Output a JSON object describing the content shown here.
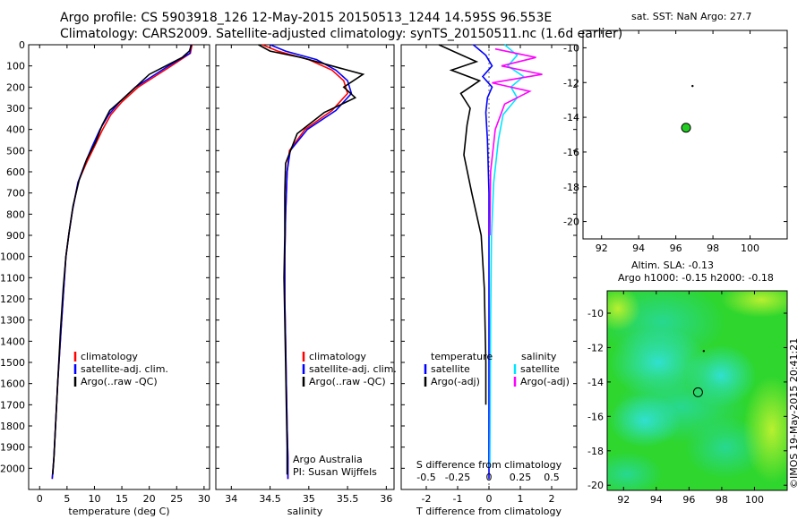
{
  "header": {
    "line1": "Argo profile: CS 5903918_126 12-May-2015 20150513_1244 14.595S 96.553E",
    "line2": "Climatology: CARS2009. Satellite-adjusted climatology: synTS_20150511.nc (1.6d earlier)"
  },
  "colors": {
    "climatology": "#ff0000",
    "satellite": "#0000ff",
    "argo": "#000000",
    "sat_salinity": "#00e5ff",
    "argo_salinity": "#ff00ff",
    "marker": "#22cc22"
  },
  "chart_data": [
    {
      "type": "line",
      "id": "temperature",
      "xlabel": "temperature (deg C)",
      "ylabel": "",
      "xlim": [
        -2,
        31
      ],
      "ylim": [
        2100,
        0
      ],
      "xticks": [
        "0",
        "5",
        "10",
        "15",
        "20",
        "25",
        "30"
      ],
      "xtick_values": [
        0,
        5,
        10,
        15,
        20,
        25,
        30
      ],
      "yticks": [
        "0",
        "100",
        "200",
        "300",
        "400",
        "500",
        "600",
        "700",
        "800",
        "900",
        "1000",
        "1100",
        "1200",
        "1300",
        "1400",
        "1500",
        "1600",
        "1700",
        "1800",
        "1900",
        "2000"
      ],
      "ytick_values": [
        0,
        100,
        200,
        300,
        400,
        500,
        600,
        700,
        800,
        900,
        1000,
        1100,
        1200,
        1300,
        1400,
        1500,
        1600,
        1700,
        1800,
        1900,
        2000
      ],
      "legend": [
        "climatology",
        "satellite-adj. clim.",
        "Argo(..raw -QC)"
      ],
      "series": [
        {
          "name": "climatology",
          "color": "#ff0000",
          "x": [
            27.8,
            27.5,
            24,
            21,
            18,
            15,
            13,
            11.5,
            10,
            8.5,
            7,
            6,
            5.3,
            4.8,
            4.4,
            3.9,
            3.3,
            2.9,
            2.6,
            2.3
          ],
          "y": [
            0,
            40,
            100,
            150,
            200,
            270,
            330,
            400,
            480,
            560,
            650,
            780,
            900,
            1000,
            1150,
            1350,
            1600,
            1800,
            1950,
            2050
          ]
        },
        {
          "name": "satellite-adj. clim.",
          "color": "#0000ff",
          "x": [
            27.6,
            27.4,
            23.5,
            20.5,
            17.5,
            14.6,
            12.6,
            11,
            9.6,
            8.3,
            7,
            6,
            5.3,
            4.8,
            4.4,
            3.9,
            3.3,
            2.9,
            2.6,
            2.3
          ],
          "y": [
            0,
            40,
            100,
            150,
            200,
            270,
            330,
            400,
            480,
            560,
            650,
            780,
            900,
            1000,
            1150,
            1350,
            1600,
            1800,
            1950,
            2050
          ]
        },
        {
          "name": "Argo(..raw -QC)",
          "color": "#000000",
          "x": [
            27.7,
            27.3,
            26,
            23,
            20,
            17.5,
            15,
            12.8,
            11.4,
            10.2,
            8.6,
            7.2,
            6.1,
            5.4,
            4.8,
            4.3,
            3.8,
            3.3,
            2.9,
            2.6,
            2.4
          ],
          "y": [
            0,
            30,
            60,
            100,
            140,
            200,
            260,
            310,
            380,
            460,
            540,
            640,
            760,
            880,
            1000,
            1150,
            1350,
            1600,
            1800,
            1950,
            2030
          ]
        }
      ]
    },
    {
      "type": "line",
      "id": "salinity",
      "xlabel": "salinity",
      "ylabel": "",
      "xlim": [
        33.8,
        36.1
      ],
      "ylim": [
        2100,
        0
      ],
      "xticks": [
        "34",
        "34.5",
        "35",
        "35.5",
        "36"
      ],
      "xtick_values": [
        34,
        34.5,
        35,
        35.5,
        36
      ],
      "legend": [
        "climatology",
        "satellite-adj. clim.",
        "Argo(..raw -QC)"
      ],
      "annotations": [
        "Argo Australia",
        "PI: Susan Wijffels"
      ],
      "series": [
        {
          "name": "climatology",
          "color": "#ff0000",
          "x": [
            34.4,
            34.6,
            35.0,
            35.3,
            35.45,
            35.5,
            35.3,
            34.95,
            34.75,
            34.72,
            34.7,
            34.69,
            34.69,
            34.7,
            34.71,
            34.72,
            34.73,
            34.73
          ],
          "y": [
            0,
            30,
            70,
            120,
            170,
            230,
            310,
            400,
            500,
            600,
            800,
            1000,
            1200,
            1400,
            1600,
            1800,
            1950,
            2050
          ]
        },
        {
          "name": "satellite-adj. clim.",
          "color": "#0000ff",
          "x": [
            34.5,
            34.7,
            35.1,
            35.35,
            35.5,
            35.55,
            35.35,
            34.98,
            34.76,
            34.72,
            34.7,
            34.69,
            34.69,
            34.7,
            34.71,
            34.72,
            34.73,
            34.73
          ],
          "y": [
            0,
            30,
            70,
            120,
            170,
            230,
            310,
            400,
            500,
            600,
            800,
            1000,
            1200,
            1400,
            1600,
            1800,
            1950,
            2050
          ]
        },
        {
          "name": "Argo(..raw -QC)",
          "color": "#000000",
          "x": [
            34.35,
            34.5,
            34.9,
            35.3,
            35.7,
            35.45,
            35.6,
            35.2,
            34.85,
            34.7,
            34.69,
            34.69,
            34.68,
            34.69,
            34.7,
            34.71,
            34.72,
            34.72
          ],
          "y": [
            0,
            30,
            60,
            100,
            140,
            200,
            250,
            320,
            420,
            560,
            700,
            900,
            1100,
            1300,
            1500,
            1700,
            1900,
            2030
          ]
        }
      ]
    },
    {
      "type": "line",
      "id": "difference",
      "xlabel": "T difference from climatology",
      "xlabel_top": "S difference from climatology",
      "xlim": [
        -2.8,
        2.8
      ],
      "ylim": [
        2100,
        0
      ],
      "xticks": [
        "-2",
        "-1",
        "0",
        "1",
        "2"
      ],
      "xtick_values": [
        -2,
        -1,
        0,
        1,
        2
      ],
      "xticks_top": [
        "-0.5",
        "-0.25",
        "0",
        "0.25",
        "0.5"
      ],
      "legend_left_title": "temperature",
      "legend_right_title": "salinity",
      "legend": [
        "satellite",
        "Argo(-adj)",
        "satellite",
        "Argo(-adj)"
      ],
      "series": [
        {
          "name": "temperature satellite",
          "color": "#0000ff",
          "x": [
            -0.5,
            -0.1,
            0.1,
            -0.2,
            0.1,
            -0.05,
            -0.1,
            -0.05,
            0,
            0,
            0,
            0
          ],
          "y": [
            0,
            50,
            100,
            150,
            200,
            250,
            320,
            450,
            700,
            1100,
            1600,
            2050
          ]
        },
        {
          "name": "temperature Argo(-adj)",
          "color": "#000000",
          "x": [
            -1.6,
            -1.0,
            -0.4,
            -1.2,
            -0.3,
            -0.9,
            -0.6,
            -0.7,
            -0.8,
            -0.55,
            -0.25,
            -0.15,
            -0.1,
            -0.1
          ],
          "y": [
            0,
            40,
            80,
            120,
            170,
            230,
            300,
            380,
            520,
            700,
            900,
            1150,
            1500,
            1700
          ]
        },
        {
          "name": "salinity satellite",
          "color": "#00e5ff",
          "x": [
            0.5,
            0.9,
            0.6,
            1.1,
            0.7,
            0.9,
            0.45,
            0.3,
            0.15,
            0.08,
            0.05,
            0.03
          ],
          "y": [
            0,
            50,
            100,
            150,
            200,
            250,
            330,
            450,
            650,
            900,
            1300,
            2000
          ]
        },
        {
          "name": "salinity Argo(-adj)",
          "color": "#ff00ff",
          "x": [
            0.2,
            1.5,
            0.4,
            1.7,
            0.1,
            1.3,
            0.5,
            0.2,
            0.05,
            0.03
          ],
          "y": [
            20,
            60,
            100,
            140,
            180,
            220,
            280,
            400,
            600,
            900
          ]
        }
      ]
    },
    {
      "type": "scatter",
      "id": "sst-map",
      "title": "sat. SST: NaN Argo: 27.7",
      "xlim": [
        91,
        102
      ],
      "ylim": [
        -21,
        -9
      ],
      "xticks": [
        "92",
        "94",
        "96",
        "98",
        "100"
      ],
      "xtick_values": [
        92,
        94,
        96,
        98,
        100
      ],
      "yticks": [
        "-10",
        "-12",
        "-14",
        "-16",
        "-18",
        "-20"
      ],
      "ytick_values": [
        -10,
        -12,
        -14,
        -16,
        -18,
        -20
      ],
      "points": [
        {
          "x": 96.55,
          "y": -14.6,
          "label": "Argo float"
        },
        {
          "x": 96.9,
          "y": -12.2,
          "label": ""
        }
      ]
    },
    {
      "type": "heatmap",
      "id": "sla-map",
      "title": "Altim. SLA: -0.13",
      "subtitle": "Argo h1000: -0.15 h2000: -0.18",
      "xlim": [
        91,
        102
      ],
      "ylim": [
        -20.3,
        -8.7
      ],
      "xticks": [
        "92",
        "94",
        "96",
        "98",
        "100"
      ],
      "xtick_values": [
        92,
        94,
        96,
        98,
        100
      ],
      "yticks": [
        "-10",
        "-12",
        "-14",
        "-16",
        "-18",
        "-20"
      ],
      "ytick_values": [
        -10,
        -12,
        -14,
        -16,
        -18,
        -20
      ],
      "points": [
        {
          "x": 96.55,
          "y": -14.6,
          "label": "Argo float"
        },
        {
          "x": 96.9,
          "y": -12.2,
          "label": ""
        }
      ]
    }
  ],
  "stamp": "©IMOS 19-May-2015 20:41:21"
}
